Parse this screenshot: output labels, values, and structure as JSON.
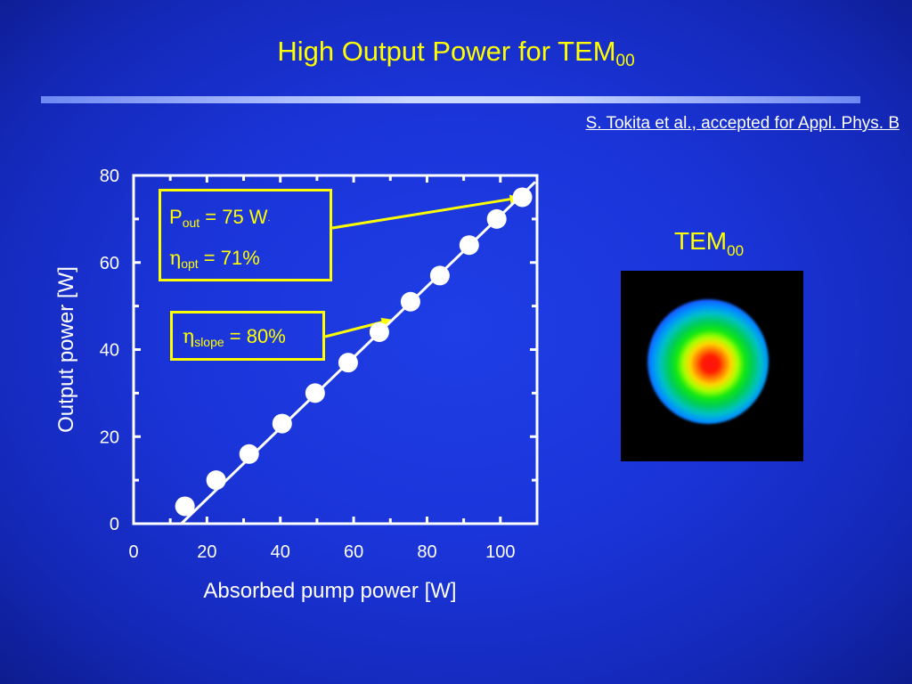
{
  "title": {
    "text": "High Output Power for TEM",
    "subscript": "00"
  },
  "citation": "S. Tokita et al., accepted for Appl. Phys. B",
  "callouts": {
    "power": {
      "symbol": "P",
      "subscript": "out",
      "text": " = 75 W",
      "suffix": "."
    },
    "optical_efficiency": {
      "symbol": "η",
      "subscript": "opt",
      "text": " = 71%"
    },
    "slope_efficiency": {
      "symbol": "η",
      "subscript": "slope",
      "text": " = 80%"
    }
  },
  "beam_profile": {
    "label": "TEM",
    "subscript": "00"
  },
  "colors": {
    "background": "#1a34d8",
    "title": "#ffff00",
    "text": "#ffffff",
    "callout": "#ffff00",
    "markers": "#ffffff"
  },
  "chart_data": {
    "type": "scatter",
    "xlabel": "Absorbed pump power [W]",
    "ylabel": "Output power [W]",
    "xlim": [
      0,
      110
    ],
    "ylim": [
      0,
      80
    ],
    "xticks": [
      0,
      20,
      40,
      60,
      80,
      100
    ],
    "yticks": [
      0,
      20,
      40,
      60,
      80
    ],
    "grid": false,
    "series": [
      {
        "marker": "circle",
        "x": [
          14,
          22.5,
          31.5,
          40.5,
          49.5,
          58.5,
          67,
          75.5,
          83.5,
          91.5,
          99,
          106
        ],
        "y": [
          4,
          10,
          16,
          23,
          30,
          37,
          44,
          51,
          57,
          64,
          70,
          75
        ]
      }
    ],
    "fit_line": {
      "x": [
        13,
        109.5
      ],
      "y": [
        0,
        78.5
      ]
    },
    "annotations": [
      {
        "text_ref": "callouts.power",
        "points_to": {
          "x": 106,
          "y": 75
        }
      },
      {
        "text_ref": "callouts.slope_efficiency",
        "points_to": {
          "x": 71,
          "y": 47
        }
      }
    ]
  }
}
